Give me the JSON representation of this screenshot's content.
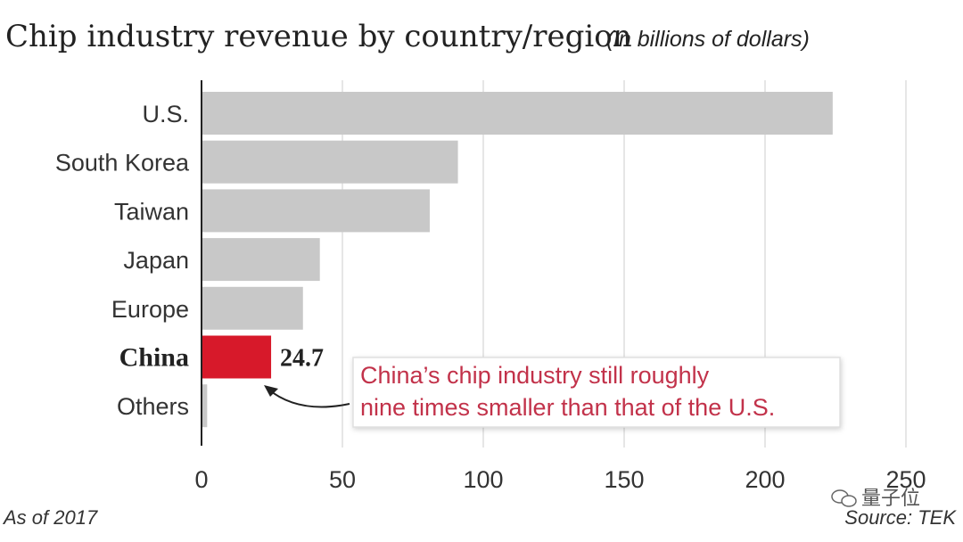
{
  "chart_data": {
    "type": "bar",
    "orientation": "horizontal",
    "title": "Chip industry revenue by country/region",
    "title_unit": "(in billions of dollars)",
    "categories": [
      "U.S.",
      "South Korea",
      "Taiwan",
      "Japan",
      "Europe",
      "China",
      "Others"
    ],
    "values": [
      224,
      91,
      81,
      42,
      36,
      24.7,
      2
    ],
    "highlight": {
      "category": "China",
      "value_label": "24.7",
      "color": "#d7192a"
    },
    "bar_color": "#c8c8c8",
    "xlim": [
      0,
      250
    ],
    "xticks": [
      0,
      50,
      100,
      150,
      200,
      250
    ],
    "grid": true,
    "annotation": {
      "lines": [
        "China’s chip industry still roughly",
        "nine times smaller than that of the U.S."
      ],
      "color": "#c2324a"
    }
  },
  "footer": {
    "note": "As of 2017",
    "source": "Source: TEK"
  },
  "watermark": {
    "text": "量子位",
    "icon": "wechat-icon"
  }
}
